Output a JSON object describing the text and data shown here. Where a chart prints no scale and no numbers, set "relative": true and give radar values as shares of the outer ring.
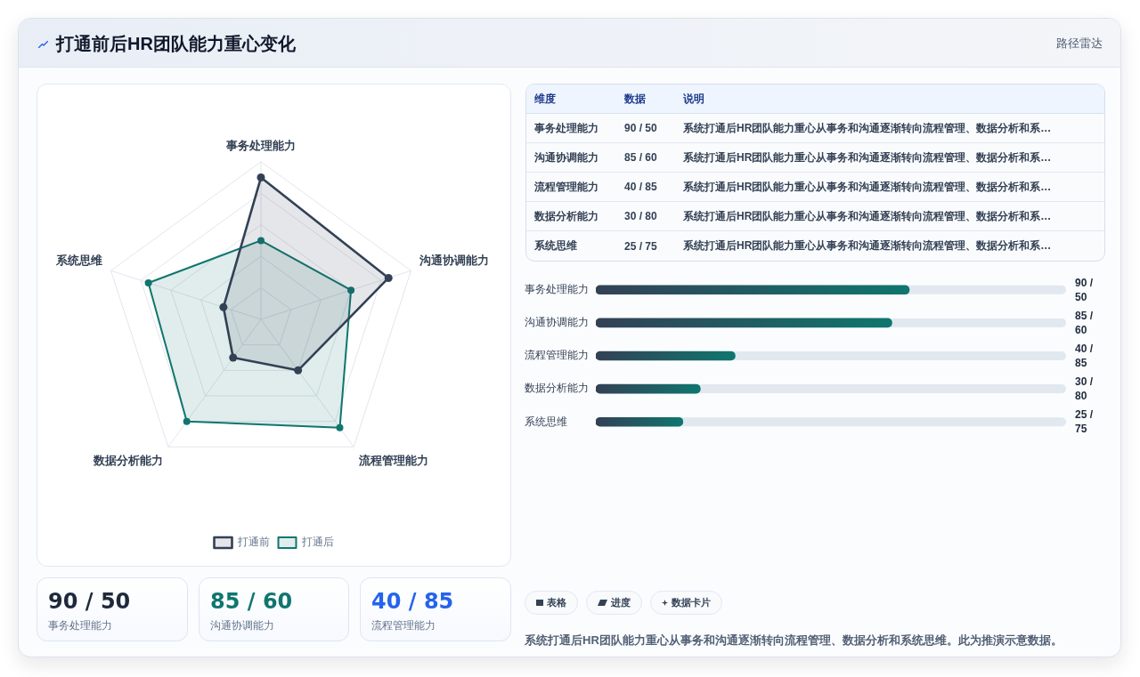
{
  "chart_data": [
    {
      "type": "other",
      "title": "打通前后HR团队能力重心变化",
      "subtitle": "路径雷达"
    },
    {
      "type": "radar",
      "categories": [
        "事务处理能力",
        "沟通协调能力",
        "流程管理能力",
        "数据分析能力",
        "系统思维"
      ],
      "relative": true,
      "series": [
        {
          "name": "打通前",
          "color": "#334155",
          "values": [
            0.9,
            0.85,
            0.4,
            0.3,
            0.25
          ]
        },
        {
          "name": "打通后",
          "color": "#0f766e",
          "values": [
            0.5,
            0.6,
            0.85,
            0.8,
            0.75
          ]
        }
      ],
      "legend": "bottom",
      "grid": true,
      "marker": "circle"
    },
    {
      "type": "other",
      "categories": [
        "维度",
        "数据",
        "说明"
      ],
      "y_categories": [
        "事务处理能力",
        "沟通协调能力",
        "流程管理能力",
        "数据分析能力",
        "系统思维"
      ],
      "cell_labels": [
        [
          "90 / 50",
          "系统打通后HR团队能力重心从事务和沟通逐渐转向流程管理、数据分析和系…"
        ],
        [
          "85 / 60",
          "系统打通后HR团队能力重心从事务和沟通逐渐转向流程管理、数据分析和系…"
        ],
        [
          "40 / 85",
          "系统打通后HR团队能力重心从事务和沟通逐渐转向流程管理、数据分析和系…"
        ],
        [
          "30 / 80",
          "系统打通后HR团队能力重心从事务和沟通逐渐转向流程管理、数据分析和系…"
        ],
        [
          "25 / 75",
          "系统打通后HR团队能力重心从事务和沟通逐渐转向流程管理、数据分析和系…"
        ]
      ]
    },
    {
      "type": "bar",
      "orientation": "horizontal",
      "categories": [
        "事务处理能力",
        "沟通协调能力",
        "流程管理能力",
        "数据分析能力",
        "系统思维"
      ],
      "values": [
        90,
        85,
        40,
        30,
        25
      ],
      "color": "#0f766e",
      "xlim": [
        0,
        135
      ],
      "value_labels": [
        "90 / 50",
        "85 / 60",
        "40 / 85",
        "30 / 80",
        "25 / 75"
      ],
      "tick_labels": "y"
    },
    {
      "type": "other",
      "categories": [
        "事务处理能力",
        "沟通协调能力",
        "流程管理能力"
      ],
      "value_labels": [
        "90 / 50",
        "85 / 60",
        "40 / 85"
      ]
    },
    {
      "type": "other",
      "annotations": [
        "表格",
        "进度",
        "数据卡片",
        "系统打通后HR团队能力重心从事务和沟通逐渐转向流程管理、数据分析和系统思维。此为推演示意数据。"
      ]
    }
  ]
}
